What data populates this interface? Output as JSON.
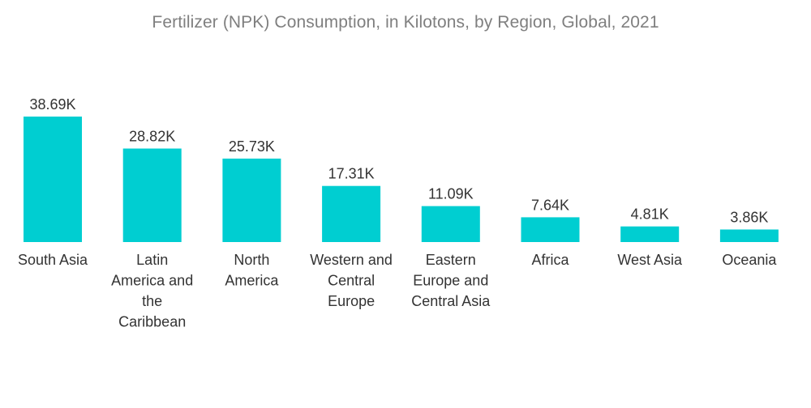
{
  "chart_data": {
    "type": "bar",
    "title": "Fertilizer (NPK) Consumption, in Kilotons, by Region, Global, 2021",
    "xlabel": "",
    "ylabel": "",
    "ylim": [
      0,
      38.69
    ],
    "categories": [
      [
        "South Asia"
      ],
      [
        "Latin",
        "America and",
        "the",
        "Caribbean"
      ],
      [
        "North",
        "America"
      ],
      [
        "Western and",
        "Central",
        "Europe"
      ],
      [
        "Eastern",
        "Europe and",
        "Central Asia"
      ],
      [
        "Africa"
      ],
      [
        "West Asia"
      ],
      [
        "Oceania"
      ]
    ],
    "values": [
      38.69,
      28.82,
      25.73,
      17.31,
      11.09,
      7.64,
      4.81,
      3.86
    ],
    "data_labels": [
      "38.69K",
      "28.82K",
      "25.73K",
      "17.31K",
      "11.09K",
      "7.64K",
      "4.81K",
      "3.86K"
    ],
    "bar_color": "#00ced1",
    "grid": false,
    "legend": "none"
  }
}
